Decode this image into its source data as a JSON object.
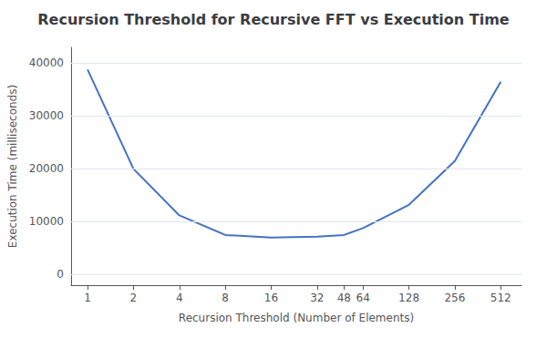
{
  "chart_data": {
    "type": "line",
    "title": "Recursion Threshold for Recursive FFT vs Execution Time",
    "xlabel": "Recursion Threshold (Number of Elements)",
    "ylabel": "Execution Time (milliseconds)",
    "x": [
      1,
      2,
      4,
      8,
      16,
      32,
      48,
      64,
      128,
      256,
      512
    ],
    "values": [
      38800,
      20000,
      11200,
      7500,
      7000,
      7200,
      7500,
      8800,
      13200,
      21500,
      36500
    ],
    "color": "#4472C4",
    "log": "x",
    "xlim": [
      0.78,
      700
    ],
    "xticks": [
      1,
      2,
      4,
      8,
      16,
      32,
      48,
      64,
      128,
      256,
      512
    ],
    "ylim": [
      -2000,
      43000
    ],
    "yticks": [
      0,
      10000,
      20000,
      30000,
      40000
    ],
    "grid": true
  }
}
